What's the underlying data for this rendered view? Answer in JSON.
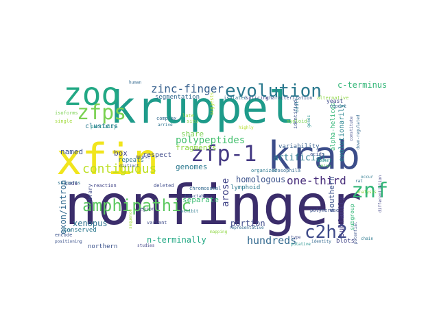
{
  "words": [
    {
      "text": "nonfinger",
      "color": "#3b2d6b"
    },
    {
      "text": "kruppel",
      "color": "#1e9b8a"
    },
    {
      "text": "xfin",
      "color": "#f1e51d"
    },
    {
      "text": "krab",
      "color": "#3c4d8a"
    },
    {
      "text": "zoo",
      "color": "#22a884"
    },
    {
      "text": "evolution",
      "color": "#2a788e"
    },
    {
      "text": "zfp-1",
      "color": "#443983"
    },
    {
      "text": "znf91",
      "color": "#35b779"
    },
    {
      "text": "zfps",
      "color": "#7ad151"
    },
    {
      "text": "amphipathic",
      "color": "#5ec962"
    },
    {
      "text": "c2h2",
      "color": "#3e4a89"
    },
    {
      "text": "zinc-finger",
      "color": "#355f8d"
    },
    {
      "text": "contiguous",
      "color": "#bddf26"
    },
    {
      "text": "one-third",
      "color": "#472c7a"
    },
    {
      "text": "hundreds",
      "color": "#31688e"
    },
    {
      "text": "polypeptides",
      "color": "#46c06f"
    },
    {
      "text": "homologous",
      "color": "#3b528b"
    },
    {
      "text": "artificial",
      "color": "#2a788e"
    },
    {
      "text": "c-terminus",
      "color": "#35b779"
    },
    {
      "text": "xenopus",
      "color": "#2c728e"
    },
    {
      "text": "n-terminally",
      "color": "#22a884"
    },
    {
      "text": "portion",
      "color": "#3e4a89"
    },
    {
      "text": "genomes",
      "color": "#2a788e"
    },
    {
      "text": "arose",
      "color": "#414487"
    },
    {
      "text": "separate",
      "color": "#3dbc74"
    },
    {
      "text": "fragments",
      "color": "#8fd744"
    },
    {
      "text": "share",
      "color": "#7ad151"
    },
    {
      "text": "variability",
      "color": "#355f8d"
    },
    {
      "text": "southern",
      "color": "#3b528b"
    },
    {
      "text": "subfamily",
      "color": "#443983"
    },
    {
      "text": "exon/intron",
      "color": "#31688e"
    },
    {
      "text": "alpha-helices",
      "color": "#35b779"
    },
    {
      "text": "evolutionarily",
      "color": "#26828e"
    },
    {
      "text": "respect",
      "color": "#3e4a89"
    },
    {
      "text": "named",
      "color": "#3b528b"
    },
    {
      "text": "box",
      "color": "#414487"
    },
    {
      "text": "repeats",
      "color": "#2c728e"
    },
    {
      "text": "clusters",
      "color": "#2a788e"
    },
    {
      "text": "segmentation",
      "color": "#31688e"
    },
    {
      "text": "conserved",
      "color": "#2a788e"
    },
    {
      "text": "northern",
      "color": "#3b528b"
    },
    {
      "text": "blots",
      "color": "#414487"
    },
    {
      "text": "lymphoid",
      "color": "#2a788e"
    },
    {
      "text": "library",
      "color": "#3e4a89"
    },
    {
      "text": "code",
      "color": "#443983"
    },
    {
      "text": "subgroup",
      "color": "#35b779"
    },
    {
      "text": "isoforms",
      "color": "#7ad151"
    },
    {
      "text": "single",
      "color": "#a0da39"
    },
    {
      "text": "partially",
      "color": "#21918c"
    },
    {
      "text": "complex",
      "color": "#31688e"
    },
    {
      "text": "suggests",
      "color": "#b5de2b"
    },
    {
      "text": "characterization",
      "color": "#3b528b"
    },
    {
      "text": "alternative",
      "color": "#8fd744"
    },
    {
      "text": "isolated",
      "color": "#2c728e"
    },
    {
      "text": "splicing",
      "color": "#414487"
    },
    {
      "text": "yeast",
      "color": "#3e4a89"
    },
    {
      "text": "report",
      "color": "#31688e"
    },
    {
      "text": "identified",
      "color": "#3b528b"
    },
    {
      "text": "myeloid",
      "color": "#7ad151"
    },
    {
      "text": "adult",
      "color": "#2a788e"
    },
    {
      "text": "genes",
      "color": "#21918c"
    },
    {
      "text": "human",
      "color": "#31688e"
    },
    {
      "text": "late",
      "color": "#a0da39"
    },
    {
      "text": "situ",
      "color": "#8fd744"
    },
    {
      "text": "arrive",
      "color": "#2c728e"
    },
    {
      "text": "highly",
      "color": "#b5de2b"
    },
    {
      "text": "mouse",
      "color": "#3e4a89"
    },
    {
      "text": "distinct",
      "color": "#3b528b"
    },
    {
      "text": "organized",
      "color": "#2a788e"
    },
    {
      "text": "drosophila",
      "color": "#31688e"
    },
    {
      "text": "acids",
      "color": "#3e4a89"
    },
    {
      "text": "amino",
      "color": "#5ec962"
    },
    {
      "text": "absent",
      "color": "#21918c"
    },
    {
      "text": "encode",
      "color": "#3b528b"
    },
    {
      "text": "supports",
      "color": "#2c728e"
    },
    {
      "text": "reaction",
      "color": "#414487"
    },
    {
      "text": "deleted",
      "color": "#3e4a89"
    },
    {
      "text": "chromosomal",
      "color": "#31688e"
    },
    {
      "text": "detectable",
      "color": "#3b528b"
    },
    {
      "text": "exhibit",
      "color": "#2a788e"
    },
    {
      "text": "region",
      "color": "#414487"
    },
    {
      "text": "variant",
      "color": "#3e4a89"
    },
    {
      "text": "representative",
      "color": "#31688e"
    },
    {
      "text": "form",
      "color": "#2c728e"
    },
    {
      "text": "positioning",
      "color": "#3b528b"
    },
    {
      "text": "studies",
      "color": "#414487"
    },
    {
      "text": "type",
      "color": "#3e4a89"
    },
    {
      "text": "putative",
      "color": "#21918c"
    },
    {
      "text": "identity",
      "color": "#31688e"
    },
    {
      "text": "polymerase",
      "color": "#3b528b"
    },
    {
      "text": "chain",
      "color": "#2a788e"
    },
    {
      "text": "mapping",
      "color": "#8fd744"
    },
    {
      "text": "sequence",
      "color": "#a0da39"
    },
    {
      "text": "rat",
      "color": "#2c728e"
    },
    {
      "text": "differentiation",
      "color": "#414487"
    },
    {
      "text": "analysis",
      "color": "#8fd744"
    },
    {
      "text": "constitute",
      "color": "#3e4a89"
    },
    {
      "text": "down-regulated",
      "color": "#31688e"
    },
    {
      "text": "potential",
      "color": "#3b528b"
    },
    {
      "text": "occur",
      "color": "#2a788e"
    }
  ]
}
